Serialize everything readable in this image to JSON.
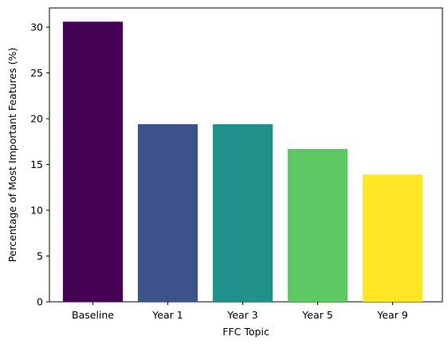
{
  "chart_data": {
    "type": "bar",
    "categories": [
      "Baseline",
      "Year 1",
      "Year 3",
      "Year 5",
      "Year 9"
    ],
    "values": [
      30.6,
      19.4,
      19.4,
      16.7,
      13.9
    ],
    "colors": [
      "#440154",
      "#3b528b",
      "#21918c",
      "#5ec962",
      "#fde725"
    ],
    "title": "",
    "xlabel": "FFC Topic",
    "ylabel": "Percentage of Most Important Features (%)",
    "ylim": [
      0,
      32.1
    ],
    "yticks": [
      0,
      5,
      10,
      15,
      20,
      25,
      30
    ],
    "grid": false,
    "legend": "none"
  }
}
